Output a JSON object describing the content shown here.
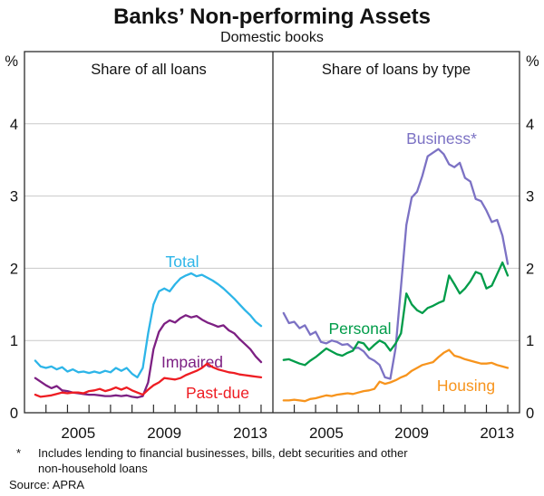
{
  "title": "Banks’ Non-performing Assets",
  "subtitle": "Domestic books",
  "footnote": {
    "marker": "*",
    "line1": "Includes lending to financial businesses, bills, debt securities and other",
    "line2": "non-household loans",
    "source": "Source: APRA"
  },
  "chart_data": {
    "type": "line",
    "unit": "%",
    "ylim": [
      0,
      5
    ],
    "yticks": [
      0,
      1,
      2,
      3,
      4
    ],
    "grid": true,
    "x_range": [
      2003.0,
      2014.55
    ],
    "x_tick_years": [
      2004,
      2005,
      2006,
      2007,
      2008,
      2009,
      2010,
      2011,
      2012,
      2013,
      2014
    ],
    "x_label_years": [
      "2005",
      "2009",
      "2013"
    ],
    "x_start": 2003.5,
    "x_step": 0.25,
    "frame_color": "#2b2b2b",
    "grid_color": "#c9c9c9",
    "text_color": "#121212",
    "panels": [
      {
        "header": "Share of all loans",
        "series": [
          {
            "name": "Total",
            "color": "#2db5e8",
            "values": [
              0.72,
              0.64,
              0.62,
              0.64,
              0.6,
              0.63,
              0.57,
              0.6,
              0.56,
              0.57,
              0.55,
              0.57,
              0.55,
              0.58,
              0.56,
              0.62,
              0.58,
              0.62,
              0.54,
              0.49,
              0.62,
              1.1,
              1.5,
              1.68,
              1.72,
              1.68,
              1.78,
              1.86,
              1.9,
              1.93,
              1.89,
              1.91,
              1.87,
              1.83,
              1.78,
              1.72,
              1.65,
              1.58,
              1.5,
              1.42,
              1.35,
              1.26,
              1.2
            ]
          },
          {
            "name": "Impaired",
            "color": "#7d2083",
            "values": [
              0.48,
              0.43,
              0.38,
              0.34,
              0.37,
              0.31,
              0.3,
              0.28,
              0.27,
              0.26,
              0.25,
              0.25,
              0.24,
              0.23,
              0.23,
              0.24,
              0.23,
              0.24,
              0.22,
              0.21,
              0.23,
              0.42,
              0.88,
              1.12,
              1.23,
              1.28,
              1.25,
              1.31,
              1.35,
              1.32,
              1.34,
              1.29,
              1.25,
              1.22,
              1.19,
              1.21,
              1.14,
              1.1,
              1.02,
              0.95,
              0.88,
              0.78,
              0.7
            ]
          },
          {
            "name": "Past-due",
            "color": "#ee1d23",
            "values": [
              0.25,
              0.22,
              0.23,
              0.24,
              0.26,
              0.28,
              0.27,
              0.28,
              0.28,
              0.27,
              0.3,
              0.31,
              0.33,
              0.3,
              0.32,
              0.35,
              0.32,
              0.35,
              0.31,
              0.28,
              0.25,
              0.32,
              0.38,
              0.42,
              0.48,
              0.47,
              0.46,
              0.48,
              0.52,
              0.55,
              0.58,
              0.62,
              0.68,
              0.63,
              0.6,
              0.58,
              0.56,
              0.55,
              0.53,
              0.52,
              0.51,
              0.5,
              0.49
            ]
          }
        ]
      },
      {
        "header": "Share of loans by type",
        "series": [
          {
            "name": "Business*",
            "color": "#7c72c4",
            "values": [
              1.38,
              1.24,
              1.26,
              1.17,
              1.21,
              1.08,
              1.12,
              0.98,
              0.96,
              1.0,
              0.98,
              0.94,
              0.95,
              0.89,
              0.9,
              0.85,
              0.76,
              0.72,
              0.66,
              0.49,
              0.47,
              0.9,
              1.75,
              2.6,
              2.98,
              3.06,
              3.28,
              3.55,
              3.6,
              3.65,
              3.58,
              3.44,
              3.4,
              3.46,
              3.25,
              3.2,
              2.96,
              2.93,
              2.8,
              2.64,
              2.67,
              2.45,
              2.06
            ]
          },
          {
            "name": "Personal",
            "color": "#009c49",
            "values": [
              0.73,
              0.74,
              0.71,
              0.68,
              0.66,
              0.72,
              0.77,
              0.83,
              0.89,
              0.85,
              0.81,
              0.79,
              0.83,
              0.86,
              0.98,
              0.96,
              0.87,
              0.94,
              1.0,
              0.96,
              0.86,
              0.96,
              1.1,
              1.65,
              1.5,
              1.42,
              1.38,
              1.45,
              1.48,
              1.52,
              1.55,
              1.9,
              1.78,
              1.65,
              1.72,
              1.82,
              1.95,
              1.92,
              1.72,
              1.76,
              1.92,
              2.08,
              1.9
            ]
          },
          {
            "name": "Housing",
            "color": "#f7941d",
            "values": [
              0.17,
              0.17,
              0.18,
              0.17,
              0.16,
              0.19,
              0.2,
              0.22,
              0.24,
              0.23,
              0.25,
              0.26,
              0.27,
              0.26,
              0.28,
              0.3,
              0.31,
              0.33,
              0.43,
              0.4,
              0.42,
              0.45,
              0.49,
              0.52,
              0.58,
              0.62,
              0.66,
              0.68,
              0.7,
              0.77,
              0.83,
              0.87,
              0.79,
              0.77,
              0.74,
              0.72,
              0.7,
              0.68,
              0.68,
              0.69,
              0.66,
              0.64,
              0.62
            ]
          }
        ]
      }
    ]
  }
}
